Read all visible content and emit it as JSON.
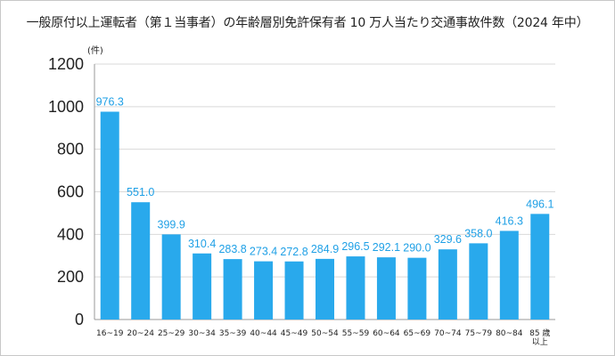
{
  "chart_data": {
    "type": "bar",
    "title": "一般原付以上運転者（第１当事者）の年齢層別免許保有者 10 万人当たり交通事故件数（2024 年中）",
    "ylabel": "(件)",
    "xlabel": "",
    "ylim": [
      0,
      1200
    ],
    "yticks": [
      0,
      200,
      400,
      600,
      800,
      1000,
      1200
    ],
    "grid": true,
    "legend": "none",
    "categories": [
      "16~19",
      "20~24",
      "25~29",
      "30~34",
      "35~39",
      "40~44",
      "45~49",
      "50~54",
      "55~59",
      "60~64",
      "65~69",
      "70~74",
      "75~79",
      "80~84",
      "85 歳以上"
    ],
    "category_lines": [
      [
        "16~19"
      ],
      [
        "20~24"
      ],
      [
        "25~29"
      ],
      [
        "30~34"
      ],
      [
        "35~39"
      ],
      [
        "40~44"
      ],
      [
        "45~49"
      ],
      [
        "50~54"
      ],
      [
        "55~59"
      ],
      [
        "60~64"
      ],
      [
        "65~69"
      ],
      [
        "70~74"
      ],
      [
        "75~79"
      ],
      [
        "80~84"
      ],
      [
        "85 歳",
        "以上"
      ]
    ],
    "values": [
      976.3,
      551.0,
      399.9,
      310.4,
      283.8,
      273.4,
      272.8,
      284.9,
      296.5,
      292.1,
      290.0,
      329.6,
      358.0,
      416.3,
      496.1
    ],
    "value_labels": [
      "976.3",
      "551.0",
      "399.9",
      "310.4",
      "283.8",
      "273.4",
      "272.8",
      "284.9",
      "296.5",
      "292.1",
      "290.0",
      "329.6",
      "358.0",
      "416.3",
      "496.1"
    ],
    "colors": {
      "bar": "#29a9ec",
      "label": "#1fa0e6",
      "grid": "#d9d9d9",
      "axis": "#999999"
    }
  }
}
